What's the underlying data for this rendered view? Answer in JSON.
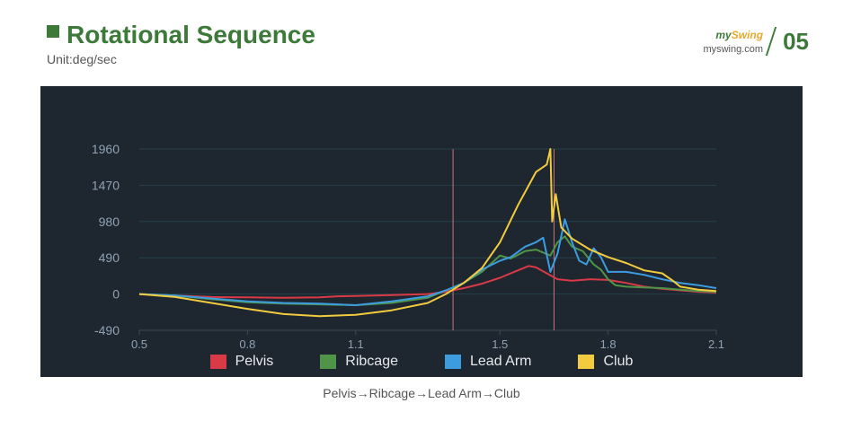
{
  "header": {
    "title": "Rotational Sequence",
    "subtitle": "Unit:deg/sec",
    "brand_logo_main": "my",
    "brand_logo_accent": "Swing",
    "brand_url": "myswing.com",
    "page_number": "05"
  },
  "caption": "Pelvis→Ribcage→Lead Arm→Club",
  "colors": {
    "accent": "#3d7a3a",
    "panel_bg": "#1e2630",
    "grid": "#24414a",
    "axis_text": "#8fa3b4",
    "marker_line": "#c9757a"
  },
  "chart_data": {
    "type": "line",
    "title": "",
    "xlabel": "",
    "ylabel": "",
    "xlim": [
      0.5,
      2.1
    ],
    "ylim": [
      -490,
      1960
    ],
    "x_ticks": [
      "0.5",
      "0.8",
      "1.1",
      "1.5",
      "1.8",
      "2.1"
    ],
    "x_tick_values": [
      0.5,
      0.8,
      1.1,
      1.5,
      1.8,
      2.1
    ],
    "y_ticks": [
      "1960",
      "1470",
      "980",
      "490",
      "0",
      "-490"
    ],
    "y_tick_values": [
      1960,
      1470,
      980,
      490,
      0,
      -490
    ],
    "grid": true,
    "legend_position": "bottom",
    "vertical_markers": [
      1.37,
      1.65
    ],
    "series": [
      {
        "name": "Pelvis",
        "color": "#d93a46",
        "points": [
          [
            0.5,
            0
          ],
          [
            0.6,
            -20
          ],
          [
            0.7,
            -40
          ],
          [
            0.8,
            -45
          ],
          [
            0.9,
            -50
          ],
          [
            1.0,
            -45
          ],
          [
            1.05,
            -30
          ],
          [
            1.1,
            -25
          ],
          [
            1.2,
            -15
          ],
          [
            1.3,
            0
          ],
          [
            1.35,
            30
          ],
          [
            1.4,
            80
          ],
          [
            1.45,
            140
          ],
          [
            1.5,
            220
          ],
          [
            1.55,
            320
          ],
          [
            1.58,
            380
          ],
          [
            1.6,
            360
          ],
          [
            1.63,
            280
          ],
          [
            1.66,
            200
          ],
          [
            1.7,
            180
          ],
          [
            1.75,
            200
          ],
          [
            1.8,
            190
          ],
          [
            1.85,
            150
          ],
          [
            1.9,
            100
          ],
          [
            1.95,
            70
          ],
          [
            2.0,
            50
          ],
          [
            2.05,
            30
          ],
          [
            2.1,
            20
          ]
        ]
      },
      {
        "name": "Ribcage",
        "color": "#4f9447",
        "points": [
          [
            0.5,
            0
          ],
          [
            0.6,
            -20
          ],
          [
            0.7,
            -70
          ],
          [
            0.8,
            -110
          ],
          [
            0.9,
            -130
          ],
          [
            1.0,
            -140
          ],
          [
            1.1,
            -150
          ],
          [
            1.2,
            -120
          ],
          [
            1.3,
            -50
          ],
          [
            1.35,
            50
          ],
          [
            1.4,
            150
          ],
          [
            1.45,
            300
          ],
          [
            1.5,
            520
          ],
          [
            1.53,
            480
          ],
          [
            1.57,
            580
          ],
          [
            1.6,
            600
          ],
          [
            1.62,
            560
          ],
          [
            1.64,
            520
          ],
          [
            1.66,
            700
          ],
          [
            1.68,
            780
          ],
          [
            1.7,
            640
          ],
          [
            1.73,
            580
          ],
          [
            1.76,
            400
          ],
          [
            1.78,
            330
          ],
          [
            1.8,
            200
          ],
          [
            1.82,
            120
          ],
          [
            1.85,
            100
          ],
          [
            1.9,
            90
          ],
          [
            1.95,
            80
          ],
          [
            2.0,
            60
          ],
          [
            2.05,
            40
          ],
          [
            2.1,
            30
          ]
        ]
      },
      {
        "name": "Lead Arm",
        "color": "#3d9ce0",
        "points": [
          [
            0.5,
            0
          ],
          [
            0.6,
            -20
          ],
          [
            0.7,
            -60
          ],
          [
            0.8,
            -100
          ],
          [
            0.9,
            -120
          ],
          [
            1.0,
            -130
          ],
          [
            1.1,
            -150
          ],
          [
            1.2,
            -100
          ],
          [
            1.3,
            -30
          ],
          [
            1.35,
            50
          ],
          [
            1.4,
            150
          ],
          [
            1.45,
            330
          ],
          [
            1.5,
            450
          ],
          [
            1.53,
            500
          ],
          [
            1.57,
            640
          ],
          [
            1.6,
            700
          ],
          [
            1.62,
            760
          ],
          [
            1.64,
            300
          ],
          [
            1.66,
            550
          ],
          [
            1.68,
            1010
          ],
          [
            1.7,
            700
          ],
          [
            1.72,
            450
          ],
          [
            1.74,
            400
          ],
          [
            1.76,
            620
          ],
          [
            1.78,
            500
          ],
          [
            1.8,
            300
          ],
          [
            1.85,
            300
          ],
          [
            1.9,
            260
          ],
          [
            1.95,
            200
          ],
          [
            2.0,
            150
          ],
          [
            2.05,
            120
          ],
          [
            2.1,
            80
          ]
        ]
      },
      {
        "name": "Club",
        "color": "#f2cc3e",
        "points": [
          [
            0.5,
            0
          ],
          [
            0.6,
            -40
          ],
          [
            0.7,
            -120
          ],
          [
            0.8,
            -200
          ],
          [
            0.9,
            -270
          ],
          [
            1.0,
            -300
          ],
          [
            1.1,
            -280
          ],
          [
            1.2,
            -220
          ],
          [
            1.3,
            -120
          ],
          [
            1.35,
            0
          ],
          [
            1.4,
            150
          ],
          [
            1.45,
            350
          ],
          [
            1.5,
            700
          ],
          [
            1.55,
            1200
          ],
          [
            1.6,
            1650
          ],
          [
            1.63,
            1750
          ],
          [
            1.64,
            1960
          ],
          [
            1.645,
            980
          ],
          [
            1.655,
            1350
          ],
          [
            1.67,
            900
          ],
          [
            1.7,
            750
          ],
          [
            1.75,
            600
          ],
          [
            1.8,
            500
          ],
          [
            1.85,
            420
          ],
          [
            1.9,
            320
          ],
          [
            1.95,
            280
          ],
          [
            1.98,
            180
          ],
          [
            2.0,
            100
          ],
          [
            2.05,
            60
          ],
          [
            2.1,
            40
          ]
        ]
      }
    ]
  }
}
